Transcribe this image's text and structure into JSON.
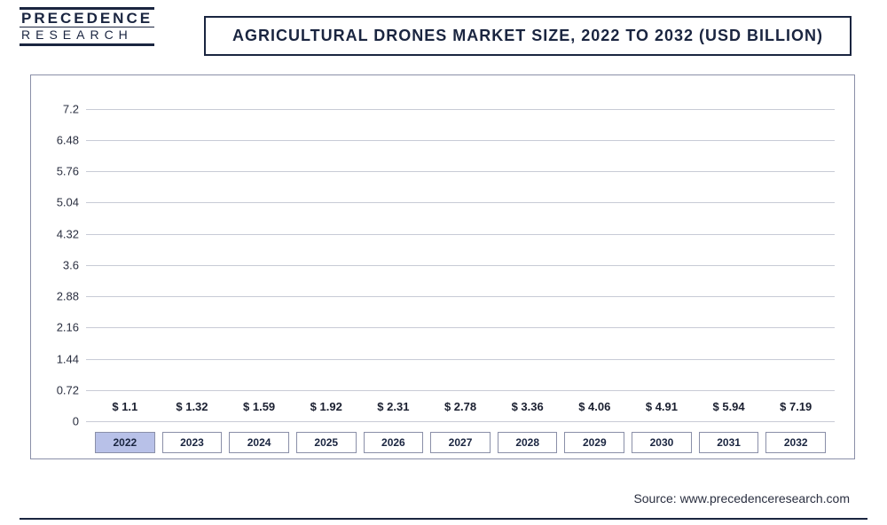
{
  "logo": {
    "top": "PRECEDENCE",
    "bottom": "RESEARCH"
  },
  "title": "AGRICULTURAL DRONES MARKET SIZE, 2022 TO 2032 (USD BILLION)",
  "source": "Source: www.precedenceresearch.com",
  "chart": {
    "type": "bar",
    "background_color": "#ffffff",
    "grid_color": "#c8cbd6",
    "border_color": "#8a8fa8",
    "ylim": [
      0,
      7.6
    ],
    "yticks": [
      0,
      0.72,
      1.44,
      2.16,
      2.88,
      3.6,
      4.32,
      5.04,
      5.76,
      6.48,
      7.2
    ],
    "ytick_fontsize": 13,
    "label_fontsize": 13,
    "label_fontweight": "700",
    "label_prefix": "$ ",
    "categories": [
      "2022",
      "2023",
      "2024",
      "2025",
      "2026",
      "2027",
      "2028",
      "2029",
      "2030",
      "2031",
      "2032"
    ],
    "values": [
      1.1,
      1.32,
      1.59,
      1.92,
      2.31,
      2.78,
      3.36,
      4.06,
      4.91,
      5.94,
      7.19
    ],
    "bar_colors": [
      "#b8c1e8",
      "#596aa5",
      "#3f5094",
      "#3a4c8f",
      "#2e3f80",
      "#283873",
      "#1a2a60",
      "#152455",
      "#101d4a",
      "#0c1740",
      "#0a1438"
    ],
    "highlight_index": 0,
    "x_fontsize": 12,
    "bar_width": 0.9
  }
}
